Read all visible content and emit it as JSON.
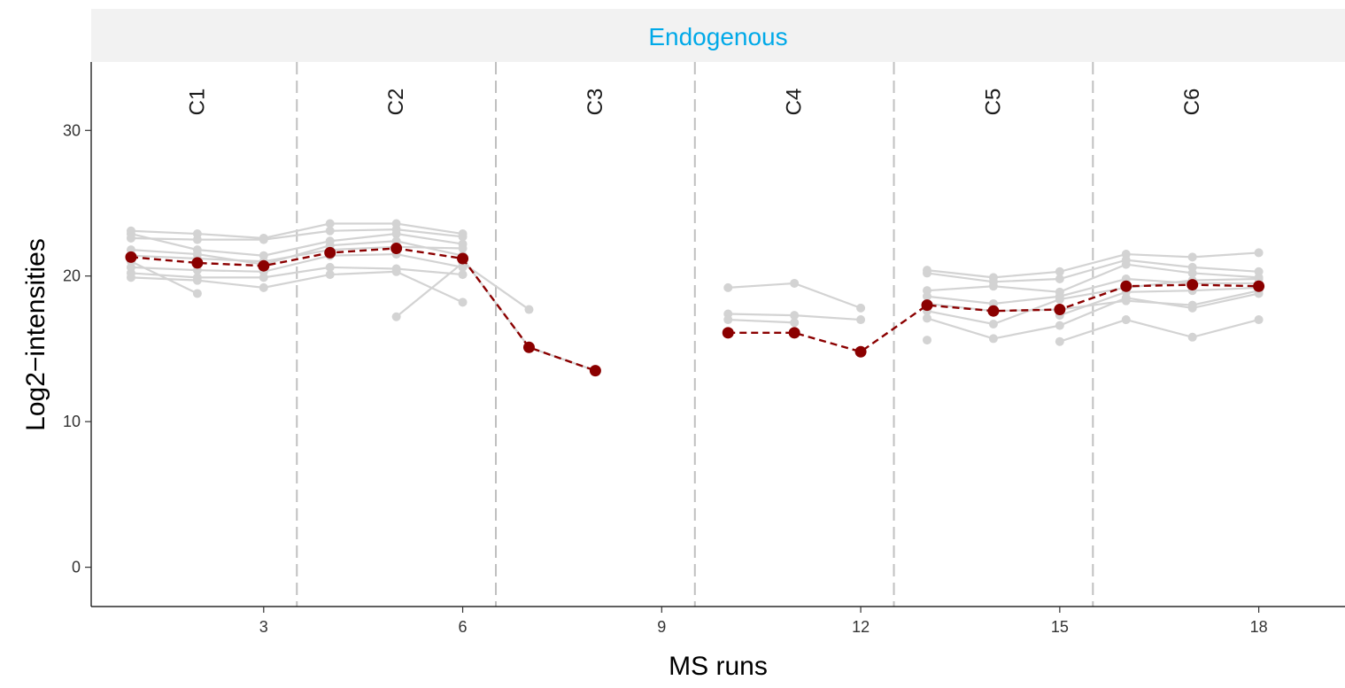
{
  "chart_data": {
    "type": "line",
    "panel_title": "Endogenous",
    "xlabel": "MS runs",
    "ylabel": "Log2−intensities",
    "xlim": [
      0.4,
      19.3
    ],
    "ylim": [
      -2.7,
      34.7
    ],
    "x_ticks": [
      3,
      6,
      9,
      12,
      15,
      18
    ],
    "y_ticks": [
      0,
      10,
      20,
      30
    ],
    "condition_boundaries": [
      3.5,
      6.5,
      9.5,
      12.5,
      15.5
    ],
    "conditions": [
      {
        "label": "C1",
        "x": 2
      },
      {
        "label": "C2",
        "x": 5
      },
      {
        "label": "C3",
        "x": 8
      },
      {
        "label": "C4",
        "x": 11
      },
      {
        "label": "C5",
        "x": 14
      },
      {
        "label": "C6",
        "x": 17
      }
    ],
    "grid": false,
    "colors": {
      "feature": "#d3d3d3",
      "summary": "#8b0000",
      "boundary": "#c0c0c0",
      "strip_bg": "#f2f2f2",
      "strip_text": "#00a9e8"
    },
    "features": [
      [
        [
          1,
          23.1
        ],
        [
          2,
          22.9
        ],
        [
          3,
          22.6
        ],
        [
          4,
          23.6
        ],
        [
          5,
          23.6
        ],
        [
          6,
          22.9
        ]
      ],
      [
        [
          1,
          22.6
        ],
        [
          2,
          22.5
        ],
        [
          3,
          22.5
        ],
        [
          4,
          23.1
        ],
        [
          5,
          23.2
        ],
        [
          6,
          22.7
        ]
      ],
      [
        [
          1,
          22.9
        ],
        [
          2,
          21.8
        ],
        [
          3,
          21.4
        ],
        [
          4,
          22.4
        ],
        [
          5,
          22.9
        ],
        [
          6,
          22.2
        ]
      ],
      [
        [
          1,
          21.8
        ],
        [
          2,
          21.5
        ],
        [
          3,
          20.8
        ],
        [
          4,
          22.1
        ],
        [
          5,
          22.4
        ],
        [
          6,
          21.4
        ]
      ],
      [
        [
          1,
          21.4
        ],
        [
          2,
          21.2
        ],
        [
          3,
          21.0
        ],
        [
          4,
          21.8
        ],
        [
          5,
          22.0
        ],
        [
          6,
          21.9
        ]
      ],
      [
        [
          1,
          21.0
        ],
        [
          2,
          18.8
        ]
      ],
      [
        [
          1,
          20.6
        ],
        [
          2,
          20.4
        ],
        [
          3,
          20.3
        ],
        [
          4,
          21.4
        ],
        [
          5,
          21.5
        ],
        [
          6,
          20.6
        ]
      ],
      [
        [
          1,
          20.2
        ],
        [
          2,
          19.9
        ],
        [
          3,
          19.9
        ],
        [
          4,
          20.6
        ],
        [
          5,
          20.5
        ],
        [
          6,
          20.1
        ]
      ],
      [
        [
          1,
          19.9
        ],
        [
          2,
          19.7
        ],
        [
          3,
          19.2
        ],
        [
          4,
          20.1
        ],
        [
          5,
          20.3
        ],
        [
          6,
          18.2
        ]
      ],
      [
        [
          5,
          17.2
        ],
        [
          6,
          20.9
        ],
        [
          7,
          17.7
        ]
      ],
      [
        [
          6,
          21.2
        ],
        [
          7,
          15.1
        ],
        [
          8,
          13.5
        ]
      ],
      [
        [
          10,
          19.2
        ],
        [
          11,
          19.5
        ],
        [
          12,
          17.8
        ]
      ],
      [
        [
          10,
          17.4
        ],
        [
          11,
          17.3
        ],
        [
          12,
          17.0
        ]
      ],
      [
        [
          10,
          17.0
        ],
        [
          11,
          16.8
        ]
      ],
      [
        [
          13,
          20.4
        ],
        [
          14,
          19.9
        ],
        [
          15,
          20.3
        ],
        [
          16,
          21.5
        ],
        [
          17,
          21.3
        ],
        [
          18,
          21.6
        ]
      ],
      [
        [
          13,
          20.2
        ],
        [
          14,
          19.6
        ],
        [
          15,
          19.8
        ],
        [
          16,
          21.1
        ],
        [
          17,
          20.6
        ],
        [
          18,
          20.3
        ]
      ],
      [
        [
          13,
          19.0
        ],
        [
          14,
          19.3
        ],
        [
          15,
          18.9
        ],
        [
          16,
          20.8
        ],
        [
          17,
          20.2
        ],
        [
          18,
          19.9
        ]
      ],
      [
        [
          13,
          18.6
        ],
        [
          14,
          18.1
        ],
        [
          15,
          18.6
        ],
        [
          16,
          19.8
        ],
        [
          17,
          19.5
        ],
        [
          18,
          19.5
        ]
      ],
      [
        [
          13,
          17.6
        ],
        [
          14,
          16.7
        ],
        [
          15,
          18.4
        ],
        [
          16,
          19.2
        ],
        [
          17,
          19.7
        ],
        [
          18,
          19.8
        ]
      ],
      [
        [
          13,
          18.1
        ],
        [
          14,
          17.6
        ],
        [
          15,
          17.7
        ],
        [
          16,
          18.3
        ],
        [
          17,
          18.0
        ],
        [
          18,
          19.0
        ]
      ],
      [
        [
          13,
          17.1
        ],
        [
          14,
          15.7
        ],
        [
          15,
          16.6
        ],
        [
          16,
          18.5
        ],
        [
          17,
          17.8
        ],
        [
          18,
          18.8
        ]
      ],
      [
        [
          13,
          15.6
        ]
      ],
      [
        [
          15,
          15.5
        ],
        [
          16,
          17.0
        ],
        [
          17,
          15.8
        ],
        [
          18,
          17.0
        ]
      ],
      [
        [
          15,
          17.3
        ],
        [
          16,
          18.9
        ],
        [
          17,
          19.0
        ],
        [
          18,
          19.2
        ]
      ]
    ],
    "summary_segments": [
      [
        [
          1,
          21.3
        ],
        [
          2,
          20.9
        ],
        [
          3,
          20.7
        ],
        [
          4,
          21.6
        ],
        [
          5,
          21.9
        ],
        [
          6,
          21.2
        ],
        [
          7,
          15.1
        ],
        [
          8,
          13.5
        ]
      ],
      [
        [
          10,
          16.1
        ],
        [
          11,
          16.1
        ],
        [
          12,
          14.8
        ],
        [
          13,
          18.0
        ],
        [
          14,
          17.6
        ],
        [
          15,
          17.7
        ],
        [
          16,
          19.3
        ],
        [
          17,
          19.4
        ],
        [
          18,
          19.3
        ]
      ]
    ]
  }
}
